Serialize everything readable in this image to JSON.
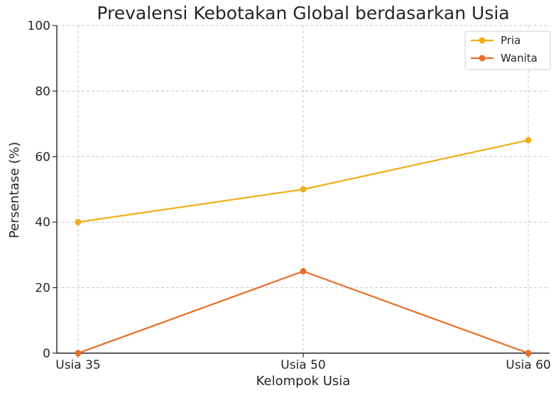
{
  "chart_data": {
    "type": "line",
    "title": "Prevalensi Kebotakan Global berdasarkan Usia",
    "xlabel": "Kelompok Usia",
    "ylabel": "Persentase (%)",
    "categories": [
      "Usia 35",
      "Usia 50",
      "Usia 60"
    ],
    "series": [
      {
        "name": "Pria",
        "values": [
          40,
          50,
          65
        ],
        "color": "#f0ae17"
      },
      {
        "name": "Wanita",
        "values": [
          0,
          25,
          0
        ],
        "color": "#e86d27"
      }
    ],
    "ylim": [
      0,
      100
    ],
    "yticks": [
      0,
      20,
      40,
      60,
      80,
      100
    ],
    "grid": true,
    "legend_position": "top-right"
  }
}
